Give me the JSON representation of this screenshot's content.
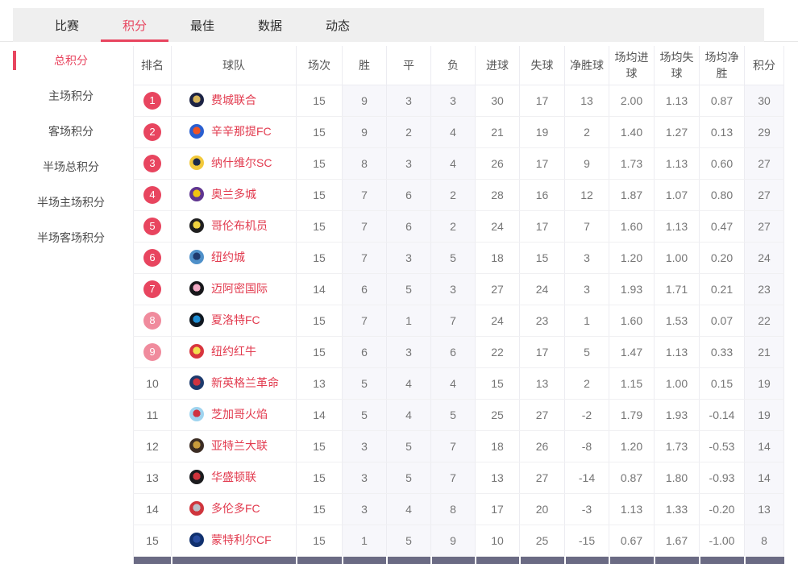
{
  "tabs": [
    {
      "label": "比赛",
      "active": false
    },
    {
      "label": "积分",
      "active": true
    },
    {
      "label": "最佳",
      "active": false
    },
    {
      "label": "数据",
      "active": false
    },
    {
      "label": "动态",
      "active": false
    }
  ],
  "sidebar": {
    "items": [
      {
        "label": "总积分",
        "active": true
      },
      {
        "label": "主场积分",
        "active": false
      },
      {
        "label": "客场积分",
        "active": false
      },
      {
        "label": "半场总积分",
        "active": false
      },
      {
        "label": "半场主场积分",
        "active": false
      },
      {
        "label": "半场客场积分",
        "active": false
      }
    ]
  },
  "colors": {
    "accent": "#e8455f",
    "badge_light": "#f08b9d",
    "team_text": "#e23a4e",
    "footer_band": "#6b6b84",
    "shade_column": "#f7f7fb",
    "topbar_bg": "#efefef"
  },
  "table": {
    "columns": [
      "排名",
      "球队",
      "场次",
      "胜",
      "平",
      "负",
      "进球",
      "失球",
      "净胜球",
      "场均进球",
      "场均失球",
      "场均净胜",
      "积分"
    ],
    "rows": [
      {
        "rank": "1",
        "badge": "solid",
        "team": "费城联合",
        "logo": [
          "#1c2344",
          "#d6b55a"
        ],
        "cells": [
          "15",
          "9",
          "3",
          "3",
          "30",
          "17",
          "13",
          "2.00",
          "1.13",
          "0.87",
          "30"
        ]
      },
      {
        "rank": "2",
        "badge": "solid",
        "team": "辛辛那提FC",
        "logo": [
          "#2a5fd0",
          "#f05323"
        ],
        "cells": [
          "15",
          "9",
          "2",
          "4",
          "21",
          "19",
          "2",
          "1.40",
          "1.27",
          "0.13",
          "29"
        ]
      },
      {
        "rank": "3",
        "badge": "solid",
        "team": "纳什维尔SC",
        "logo": [
          "#f2c93b",
          "#1c2a4a"
        ],
        "cells": [
          "15",
          "8",
          "3",
          "4",
          "26",
          "17",
          "9",
          "1.73",
          "1.13",
          "0.60",
          "27"
        ]
      },
      {
        "rank": "4",
        "badge": "solid",
        "team": "奥兰多城",
        "logo": [
          "#5f3590",
          "#f1c40f"
        ],
        "cells": [
          "15",
          "7",
          "6",
          "2",
          "28",
          "16",
          "12",
          "1.87",
          "1.07",
          "0.80",
          "27"
        ]
      },
      {
        "rank": "5",
        "badge": "solid",
        "team": "哥伦布机员",
        "logo": [
          "#1f1f1f",
          "#f0d340"
        ],
        "cells": [
          "15",
          "7",
          "6",
          "2",
          "24",
          "17",
          "7",
          "1.60",
          "1.13",
          "0.47",
          "27"
        ]
      },
      {
        "rank": "6",
        "badge": "solid",
        "team": "纽约城",
        "logo": [
          "#4f90c9",
          "#1f3a6e"
        ],
        "cells": [
          "15",
          "7",
          "3",
          "5",
          "18",
          "15",
          "3",
          "1.20",
          "1.00",
          "0.20",
          "24"
        ]
      },
      {
        "rank": "7",
        "badge": "solid",
        "team": "迈阿密国际",
        "logo": [
          "#17171a",
          "#f2a9c4"
        ],
        "cells": [
          "14",
          "6",
          "5",
          "3",
          "27",
          "24",
          "3",
          "1.93",
          "1.71",
          "0.21",
          "23"
        ]
      },
      {
        "rank": "8",
        "badge": "light",
        "team": "夏洛特FC",
        "logo": [
          "#0f1720",
          "#1e8ed4"
        ],
        "cells": [
          "15",
          "7",
          "1",
          "7",
          "24",
          "23",
          "1",
          "1.60",
          "1.53",
          "0.07",
          "22"
        ]
      },
      {
        "rank": "9",
        "badge": "light",
        "team": "纽约红牛",
        "logo": [
          "#d8353e",
          "#f3e04e"
        ],
        "cells": [
          "15",
          "6",
          "3",
          "6",
          "22",
          "17",
          "5",
          "1.47",
          "1.13",
          "0.33",
          "21"
        ]
      },
      {
        "rank": "10",
        "badge": "none",
        "team": "新英格兰革命",
        "logo": [
          "#1d3a6d",
          "#cf3340"
        ],
        "cells": [
          "13",
          "5",
          "4",
          "4",
          "15",
          "13",
          "2",
          "1.15",
          "1.00",
          "0.15",
          "19"
        ]
      },
      {
        "rank": "11",
        "badge": "none",
        "team": "芝加哥火焰",
        "logo": [
          "#9fd4ef",
          "#cf3340"
        ],
        "cells": [
          "14",
          "5",
          "4",
          "5",
          "25",
          "27",
          "-2",
          "1.79",
          "1.93",
          "-0.14",
          "19"
        ]
      },
      {
        "rank": "12",
        "badge": "none",
        "team": "亚特兰大联",
        "logo": [
          "#3b2c23",
          "#c89b3c"
        ],
        "cells": [
          "15",
          "3",
          "5",
          "7",
          "18",
          "26",
          "-8",
          "1.20",
          "1.73",
          "-0.53",
          "14"
        ]
      },
      {
        "rank": "13",
        "badge": "none",
        "team": "华盛顿联",
        "logo": [
          "#1b1b1e",
          "#d0343c"
        ],
        "cells": [
          "15",
          "3",
          "5",
          "7",
          "13",
          "27",
          "-14",
          "0.87",
          "1.80",
          "-0.93",
          "14"
        ]
      },
      {
        "rank": "14",
        "badge": "none",
        "team": "多伦多FC",
        "logo": [
          "#cf353d",
          "#b9c0c8"
        ],
        "cells": [
          "15",
          "3",
          "4",
          "8",
          "17",
          "20",
          "-3",
          "1.13",
          "1.33",
          "-0.20",
          "13"
        ]
      },
      {
        "rank": "15",
        "badge": "none",
        "team": "蒙特利尔CF",
        "logo": [
          "#10306e",
          "#274b9e"
        ],
        "cells": [
          "15",
          "1",
          "5",
          "9",
          "10",
          "25",
          "-15",
          "0.67",
          "1.67",
          "-1.00",
          "8"
        ]
      }
    ]
  }
}
